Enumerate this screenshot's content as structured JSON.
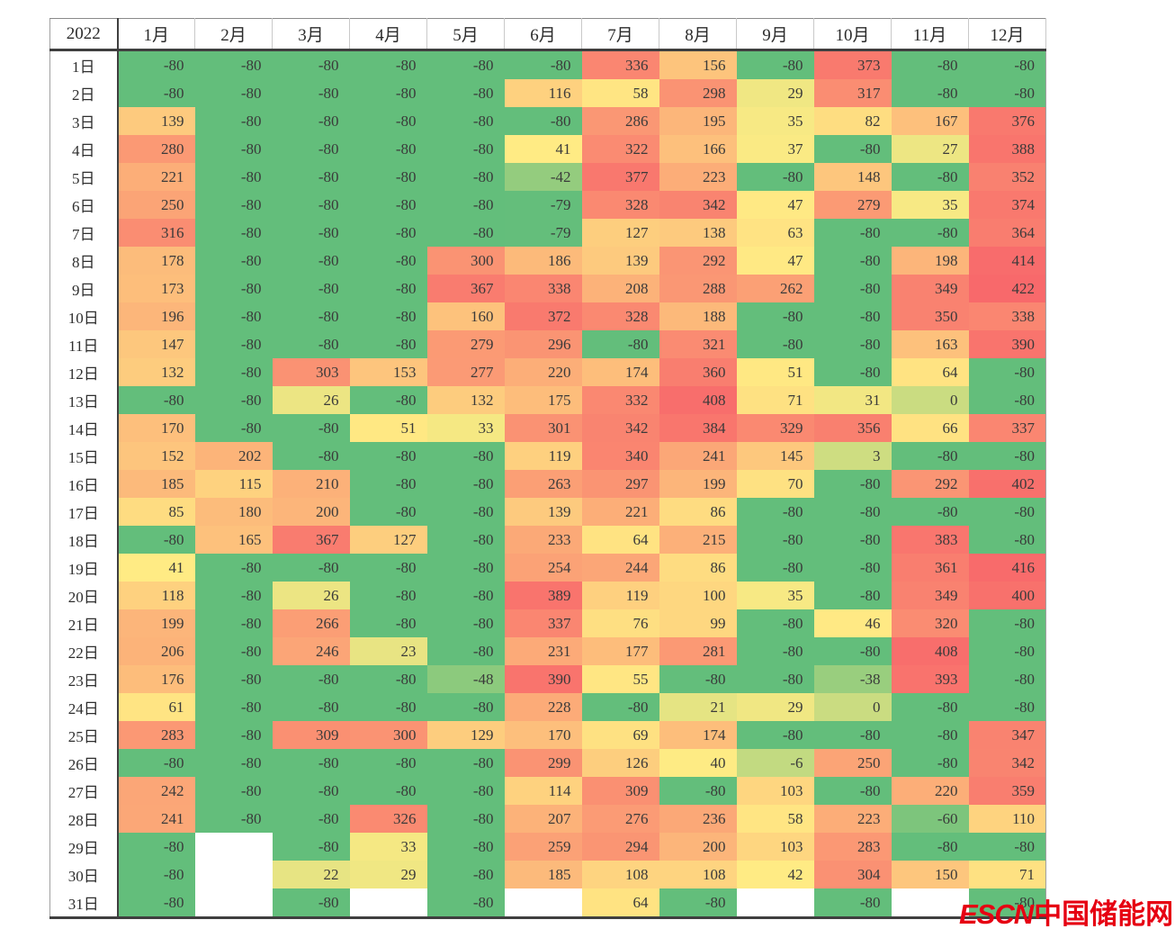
{
  "chart_data": {
    "type": "heatmap",
    "title": "2022",
    "columns": [
      "1月",
      "2月",
      "3月",
      "4月",
      "5月",
      "6月",
      "7月",
      "8月",
      "9月",
      "10月",
      "11月",
      "12月"
    ],
    "rows": [
      "1日",
      "2日",
      "3日",
      "4日",
      "5日",
      "6日",
      "7日",
      "8日",
      "9日",
      "10日",
      "11日",
      "12日",
      "13日",
      "14日",
      "15日",
      "16日",
      "17日",
      "18日",
      "19日",
      "20日",
      "21日",
      "22日",
      "23日",
      "24日",
      "25日",
      "26日",
      "27日",
      "28日",
      "29日",
      "30日",
      "31日"
    ],
    "values": [
      [
        -80,
        -80,
        -80,
        -80,
        -80,
        -80,
        336,
        156,
        -80,
        373,
        -80,
        -80
      ],
      [
        -80,
        -80,
        -80,
        -80,
        -80,
        116,
        58,
        298,
        29,
        317,
        -80,
        -80
      ],
      [
        139,
        -80,
        -80,
        -80,
        -80,
        -80,
        286,
        195,
        35,
        82,
        167,
        376
      ],
      [
        280,
        -80,
        -80,
        -80,
        -80,
        41,
        322,
        166,
        37,
        -80,
        27,
        388
      ],
      [
        221,
        -80,
        -80,
        -80,
        -80,
        -42,
        377,
        223,
        -80,
        148,
        -80,
        352
      ],
      [
        250,
        -80,
        -80,
        -80,
        -80,
        -79,
        328,
        342,
        47,
        279,
        35,
        374
      ],
      [
        316,
        -80,
        -80,
        -80,
        -80,
        -79,
        127,
        138,
        63,
        -80,
        -80,
        364
      ],
      [
        178,
        -80,
        -80,
        -80,
        300,
        186,
        139,
        292,
        47,
        -80,
        198,
        414
      ],
      [
        173,
        -80,
        -80,
        -80,
        367,
        338,
        208,
        288,
        262,
        -80,
        349,
        422
      ],
      [
        196,
        -80,
        -80,
        -80,
        160,
        372,
        328,
        188,
        -80,
        -80,
        350,
        338
      ],
      [
        147,
        -80,
        -80,
        -80,
        279,
        296,
        -80,
        321,
        -80,
        -80,
        163,
        390
      ],
      [
        132,
        -80,
        303,
        153,
        277,
        220,
        174,
        360,
        51,
        -80,
        64,
        -80
      ],
      [
        -80,
        -80,
        26,
        -80,
        132,
        175,
        332,
        408,
        71,
        31,
        0,
        -80
      ],
      [
        170,
        -80,
        -80,
        51,
        33,
        301,
        342,
        384,
        329,
        356,
        66,
        337
      ],
      [
        152,
        202,
        -80,
        -80,
        -80,
        119,
        340,
        241,
        145,
        3,
        -80,
        -80
      ],
      [
        185,
        115,
        210,
        -80,
        -80,
        263,
        297,
        199,
        70,
        -80,
        292,
        402
      ],
      [
        85,
        180,
        200,
        -80,
        -80,
        139,
        221,
        86,
        -80,
        -80,
        -80,
        -80
      ],
      [
        -80,
        165,
        367,
        127,
        -80,
        233,
        64,
        215,
        -80,
        -80,
        383,
        -80
      ],
      [
        41,
        -80,
        -80,
        -80,
        -80,
        254,
        244,
        86,
        -80,
        -80,
        361,
        416
      ],
      [
        118,
        -80,
        26,
        -80,
        -80,
        389,
        119,
        100,
        35,
        -80,
        349,
        400
      ],
      [
        199,
        -80,
        266,
        -80,
        -80,
        337,
        76,
        99,
        -80,
        46,
        320,
        -80
      ],
      [
        206,
        -80,
        246,
        23,
        -80,
        231,
        177,
        281,
        -80,
        -80,
        408,
        -80
      ],
      [
        176,
        -80,
        -80,
        -80,
        -48,
        390,
        55,
        -80,
        -80,
        -38,
        393,
        -80
      ],
      [
        61,
        -80,
        -80,
        -80,
        -80,
        228,
        -80,
        21,
        29,
        0,
        -80,
        -80
      ],
      [
        283,
        -80,
        309,
        300,
        129,
        170,
        69,
        174,
        -80,
        -80,
        -80,
        347
      ],
      [
        -80,
        -80,
        -80,
        -80,
        -80,
        299,
        126,
        40,
        -6,
        250,
        -80,
        342
      ],
      [
        242,
        -80,
        -80,
        -80,
        -80,
        114,
        309,
        -80,
        103,
        -80,
        220,
        359
      ],
      [
        241,
        -80,
        -80,
        326,
        -80,
        207,
        276,
        236,
        58,
        223,
        -60,
        110
      ],
      [
        -80,
        null,
        -80,
        33,
        -80,
        259,
        294,
        200,
        103,
        283,
        -80,
        -80
      ],
      [
        -80,
        null,
        22,
        29,
        -80,
        185,
        108,
        108,
        42,
        304,
        150,
        71
      ],
      [
        -80,
        null,
        -80,
        null,
        -80,
        null,
        64,
        -80,
        null,
        -80,
        null,
        -80
      ]
    ],
    "colorscale": {
      "min": -80,
      "mid": 41,
      "max": 422,
      "min_color": "#63BE7B",
      "mid_color": "#FFEB84",
      "max_color": "#F8696B",
      "null_color": "#FFFFFF"
    },
    "legend_position": "none",
    "grid": false
  },
  "watermark": {
    "latin": "ESCN",
    "chinese": "中国储能网",
    "color": "#E60012"
  }
}
